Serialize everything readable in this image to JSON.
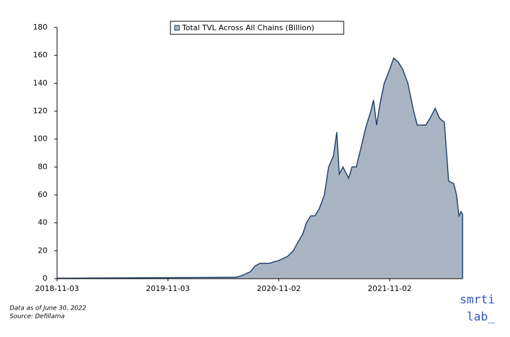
{
  "chart_data": {
    "type": "area",
    "series": [
      {
        "name": "Total TVL Across All Chains (Billion)",
        "color": "#a9b5c2",
        "line_color": "#1f3f6e",
        "values": [
          0.3,
          0.4,
          0.5,
          0.6,
          0.7,
          0.8,
          0.9,
          1,
          1,
          2,
          5,
          9,
          11,
          11,
          13,
          16,
          20,
          25,
          32,
          40,
          45,
          45,
          50,
          60,
          80,
          88,
          105,
          75,
          80,
          72,
          80,
          80,
          95,
          108,
          120,
          128,
          110,
          125,
          140,
          150,
          158,
          155,
          150,
          140,
          120,
          110,
          110,
          110,
          115,
          122,
          115,
          112,
          85,
          70,
          68,
          60,
          45,
          48,
          46
        ]
      }
    ],
    "x": [
      "2018-11-03",
      "2019-02-01",
      "2019-05-01",
      "2019-08-01",
      "2019-11-03",
      "2020-02-01",
      "2020-04-01",
      "2020-05-15",
      "2020-06-15",
      "2020-07-01",
      "2020-08-01",
      "2020-08-15",
      "2020-09-01",
      "2020-10-01",
      "2020-11-02",
      "2020-12-01",
      "2020-12-20",
      "2021-01-01",
      "2021-01-20",
      "2021-02-01",
      "2021-02-15",
      "2021-03-01",
      "2021-03-15",
      "2021-04-01",
      "2021-04-15",
      "2021-05-01",
      "2021-05-12",
      "2021-05-20",
      "2021-06-01",
      "2021-06-20",
      "2021-07-01",
      "2021-07-15",
      "2021-08-01",
      "2021-08-15",
      "2021-09-01",
      "2021-09-10",
      "2021-09-20",
      "2021-10-01",
      "2021-10-15",
      "2021-11-02",
      "2021-11-15",
      "2021-12-01",
      "2021-12-15",
      "2022-01-01",
      "2022-01-20",
      "2022-02-01",
      "2022-02-15",
      "2022-03-01",
      "2022-03-15",
      "2022-04-01",
      "2022-04-15",
      "2022-05-01",
      "2022-05-10",
      "2022-05-15",
      "2022-06-01",
      "2022-06-10",
      "2022-06-18",
      "2022-06-25",
      "2022-06-30"
    ],
    "xlim": [
      "2018-11-03",
      "2022-06-30"
    ],
    "xticks": [
      "2018-11-03",
      "2019-11-03",
      "2020-11-02",
      "2021-11-02"
    ],
    "ylim": [
      0,
      180
    ],
    "yticks": [
      0,
      20,
      40,
      60,
      80,
      100,
      120,
      140,
      160,
      180
    ],
    "notes": [
      "Data as of June 30, 2022",
      "Source: Defillama"
    ],
    "logo": [
      "smrti",
      "lab_"
    ]
  }
}
